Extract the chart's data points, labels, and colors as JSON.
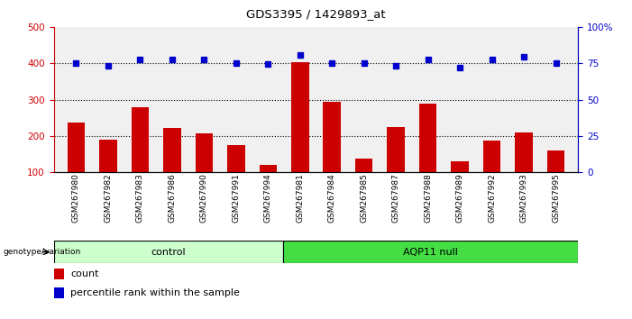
{
  "title": "GDS3395 / 1429893_at",
  "samples": [
    "GSM267980",
    "GSM267982",
    "GSM267983",
    "GSM267986",
    "GSM267990",
    "GSM267991",
    "GSM267994",
    "GSM267981",
    "GSM267984",
    "GSM267985",
    "GSM267987",
    "GSM267988",
    "GSM267989",
    "GSM267992",
    "GSM267993",
    "GSM267995"
  ],
  "counts": [
    238,
    190,
    278,
    222,
    207,
    175,
    120,
    404,
    295,
    137,
    225,
    288,
    130,
    188,
    210,
    160
  ],
  "percentile_ranks": [
    400,
    393,
    410,
    410,
    410,
    400,
    398,
    422,
    402,
    400,
    394,
    410,
    388,
    410,
    418,
    402
  ],
  "bar_color": "#cc0000",
  "dot_color": "#0000cc",
  "ylim_left": [
    100,
    500
  ],
  "ylim_right": [
    0,
    100
  ],
  "yticks_left": [
    100,
    200,
    300,
    400,
    500
  ],
  "yticks_right": [
    0,
    25,
    50,
    75,
    100
  ],
  "grid_values": [
    200,
    300,
    400
  ],
  "control_color": "#ccffcc",
  "aqp11_color": "#44dd44",
  "ctrl_count": 7,
  "aqp11_count": 9,
  "legend_count": "count",
  "legend_percentile": "percentile rank within the sample",
  "bg_color": "#f0f0f0"
}
